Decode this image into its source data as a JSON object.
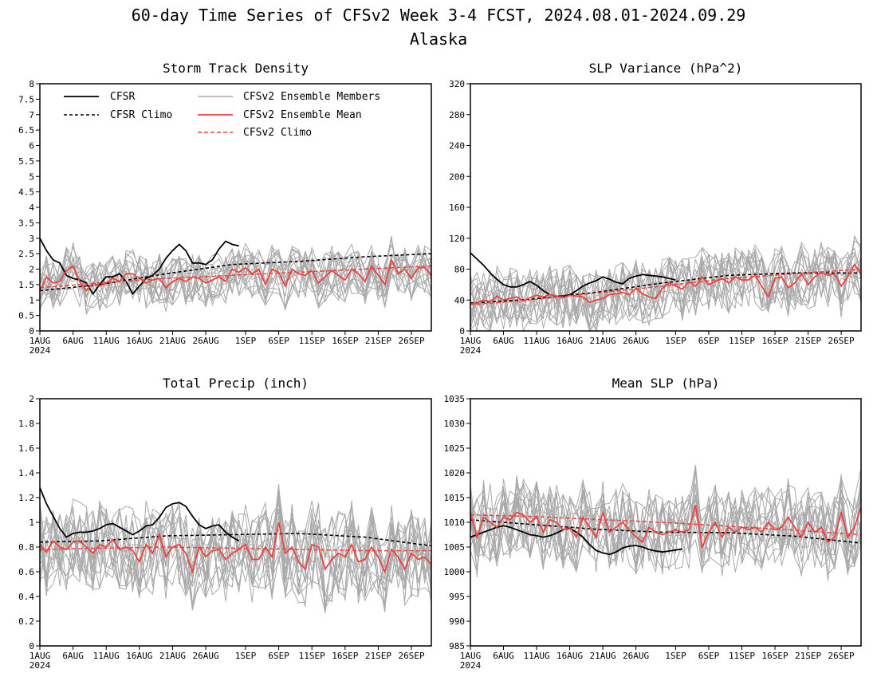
{
  "page": {
    "title": "60-day Time Series of CFSv2 Week 3-4 FCST, 2024.08.01-2024.09.29",
    "subtitle": "Alaska"
  },
  "colors": {
    "cfsr": "#000000",
    "members": "#a9a9a9",
    "ensemble_mean": "#f04040",
    "cfsv2_climo": "#f04040"
  },
  "legend": {
    "cfsr": "CFSR",
    "cfsr_climo": "CFSR Climo",
    "members": "CFSv2 Ensemble Members",
    "ens_mean": "CFSv2 Ensemble Mean",
    "cfsv2_climo": "CFSv2 Climo"
  },
  "x_axis": {
    "tick_days": [
      1,
      6,
      11,
      16,
      21,
      26,
      32,
      37,
      42,
      47,
      52,
      57
    ],
    "tick_labels": [
      "1AUG",
      "6AUG",
      "11AUG",
      "16AUG",
      "21AUG",
      "26AUG",
      "1SEP",
      "6SEP",
      "11SEP",
      "16SEP",
      "21SEP",
      "26SEP"
    ],
    "year_label": "2024",
    "xlim": [
      1,
      60
    ]
  },
  "chart_data": [
    {
      "type": "line",
      "title": "Storm Track Density",
      "ylim": [
        0,
        8
      ],
      "yticks": [
        0,
        0.5,
        1,
        1.5,
        2,
        2.5,
        3,
        3.5,
        4,
        4.5,
        5,
        5.5,
        6,
        6.5,
        7,
        7.5,
        8
      ],
      "ytick_labels": [
        "0",
        "0.5",
        "1",
        "1.5",
        "2",
        "2.5",
        "3",
        "3.5",
        "4",
        "4.5",
        "5",
        "5.5",
        "6",
        "6.5",
        "7",
        "7.5",
        "8"
      ],
      "member_band": [
        1.0,
        2.8
      ],
      "series": [
        {
          "name": "CFSR",
          "style": "solid-black",
          "x": [
            1,
            2,
            3,
            4,
            5,
            6,
            7,
            8,
            9,
            10,
            11,
            12,
            13,
            14,
            15,
            16,
            17,
            18,
            19,
            20,
            21,
            22,
            23,
            24,
            25,
            26,
            27,
            28,
            29,
            30,
            31
          ],
          "values": [
            3.0,
            2.6,
            2.3,
            2.2,
            1.8,
            1.7,
            1.65,
            1.55,
            1.2,
            1.5,
            1.75,
            1.75,
            1.85,
            1.6,
            1.2,
            1.45,
            1.7,
            1.8,
            2.0,
            2.35,
            2.6,
            2.8,
            2.6,
            2.2,
            2.2,
            2.15,
            2.3,
            2.65,
            2.9,
            2.8,
            2.75
          ]
        },
        {
          "name": "CFSR Climo",
          "style": "dash-black",
          "x": [
            1,
            10,
            20,
            30,
            40,
            50,
            60
          ],
          "values": [
            1.3,
            1.5,
            1.85,
            2.15,
            2.25,
            2.4,
            2.5
          ]
        },
        {
          "name": "CFSv2 Ensemble Mean",
          "style": "solid-red",
          "x": [
            1,
            2,
            3,
            4,
            5,
            6,
            7,
            8,
            9,
            10,
            11,
            12,
            13,
            14,
            15,
            16,
            17,
            18,
            19,
            20,
            21,
            22,
            23,
            24,
            25,
            26,
            27,
            28,
            29,
            30,
            31,
            32,
            33,
            34,
            35,
            36,
            37,
            38,
            39,
            40,
            41,
            42,
            43,
            44,
            45,
            46,
            47,
            48,
            49,
            50,
            51,
            52,
            53,
            54,
            55,
            56,
            57,
            58,
            59,
            60
          ],
          "values": [
            1.3,
            1.75,
            1.55,
            1.6,
            1.95,
            2.1,
            1.6,
            1.3,
            1.55,
            1.45,
            1.55,
            1.7,
            1.6,
            1.85,
            1.85,
            1.7,
            1.55,
            1.65,
            1.7,
            1.4,
            1.6,
            1.7,
            1.6,
            1.75,
            1.7,
            1.55,
            1.65,
            1.75,
            1.6,
            2.0,
            1.9,
            2.05,
            1.85,
            2.0,
            1.5,
            2.0,
            1.9,
            1.45,
            2.0,
            1.85,
            1.8,
            1.95,
            1.55,
            1.75,
            1.95,
            1.8,
            1.65,
            2.0,
            1.85,
            1.6,
            2.1,
            1.8,
            1.5,
            2.3,
            1.85,
            2.0,
            1.7,
            2.05,
            2.05,
            1.8
          ]
        },
        {
          "name": "CFSv2 Climo",
          "style": "dash-red",
          "x": [
            1,
            10,
            20,
            30,
            40,
            50,
            60
          ],
          "values": [
            1.4,
            1.55,
            1.7,
            1.8,
            1.9,
            2.0,
            2.1
          ]
        }
      ]
    },
    {
      "type": "line",
      "title": "SLP Variance (hPa^2)",
      "ylim": [
        0,
        320
      ],
      "yticks": [
        0,
        40,
        80,
        120,
        160,
        200,
        240,
        280,
        320
      ],
      "ytick_labels": [
        "0",
        "40",
        "80",
        "120",
        "160",
        "200",
        "240",
        "280",
        "320"
      ],
      "member_band": [
        20,
        110
      ],
      "series": [
        {
          "name": "CFSR",
          "style": "solid-black",
          "x": [
            1,
            2,
            3,
            4,
            5,
            6,
            7,
            8,
            9,
            10,
            11,
            12,
            13,
            14,
            15,
            16,
            17,
            18,
            19,
            20,
            21,
            22,
            23,
            24,
            25,
            26,
            27,
            28,
            29,
            30,
            31,
            32
          ],
          "values": [
            101,
            93,
            85,
            75,
            67,
            60,
            57,
            57,
            60,
            64,
            59,
            52,
            47,
            45,
            45,
            47,
            52,
            58,
            62,
            65,
            70,
            67,
            63,
            61,
            68,
            71,
            73,
            72,
            71,
            70,
            68,
            66
          ]
        },
        {
          "name": "CFSR Climo",
          "style": "dash-black",
          "x": [
            1,
            10,
            20,
            30,
            40,
            50,
            60
          ],
          "values": [
            36,
            41,
            50,
            62,
            72,
            75,
            75
          ]
        },
        {
          "name": "CFSv2 Ensemble Mean",
          "style": "solid-red",
          "x": [
            1,
            2,
            3,
            4,
            5,
            6,
            7,
            8,
            9,
            10,
            11,
            12,
            13,
            14,
            15,
            16,
            17,
            18,
            19,
            20,
            21,
            22,
            23,
            24,
            25,
            26,
            27,
            28,
            29,
            30,
            31,
            32,
            33,
            34,
            35,
            36,
            37,
            38,
            39,
            40,
            41,
            42,
            43,
            44,
            45,
            46,
            47,
            48,
            49,
            50,
            51,
            52,
            53,
            54,
            55,
            56,
            57,
            58,
            59,
            60
          ],
          "values": [
            35,
            36,
            40,
            38,
            45,
            40,
            42,
            44,
            39,
            43,
            46,
            44,
            47,
            45,
            43,
            46,
            45,
            44,
            37,
            40,
            42,
            47,
            48,
            50,
            47,
            55,
            48,
            44,
            42,
            55,
            62,
            58,
            54,
            64,
            58,
            70,
            60,
            64,
            68,
            62,
            70,
            66,
            66,
            72,
            58,
            44,
            68,
            70,
            56,
            62,
            74,
            60,
            70,
            76,
            72,
            74,
            58,
            70,
            86,
            74
          ]
        },
        {
          "name": "CFSv2 Climo",
          "style": "dash-red",
          "x": [
            1,
            10,
            20,
            30,
            40,
            50,
            60
          ],
          "values": [
            34,
            40,
            49,
            58,
            68,
            74,
            80
          ]
        }
      ]
    },
    {
      "type": "line",
      "title": "Total Precip (inch)",
      "ylim": [
        0,
        2
      ],
      "yticks": [
        0,
        0.2,
        0.4,
        0.6,
        0.8,
        1,
        1.2,
        1.4,
        1.6,
        1.8,
        2
      ],
      "ytick_labels": [
        "0",
        "0.2",
        "0.4",
        "0.6",
        "0.8",
        "1",
        "1.2",
        "1.4",
        "1.6",
        "1.8",
        "2"
      ],
      "member_band": [
        0.35,
        1.15
      ],
      "series": [
        {
          "name": "CFSR",
          "style": "solid-black",
          "x": [
            1,
            2,
            3,
            4,
            5,
            6,
            7,
            8,
            9,
            10,
            11,
            12,
            13,
            14,
            15,
            16,
            17,
            18,
            19,
            20,
            21,
            22,
            23,
            24,
            25,
            26,
            27,
            28,
            29,
            30,
            31
          ],
          "values": [
            1.28,
            1.15,
            1.05,
            0.95,
            0.88,
            0.91,
            0.92,
            0.92,
            0.93,
            0.95,
            0.98,
            0.99,
            0.96,
            0.93,
            0.9,
            0.93,
            0.97,
            0.98,
            1.04,
            1.12,
            1.15,
            1.16,
            1.13,
            1.05,
            0.98,
            0.95,
            0.97,
            0.98,
            0.92,
            0.88,
            0.85
          ]
        },
        {
          "name": "CFSR Climo",
          "style": "dash-black",
          "x": [
            1,
            10,
            20,
            30,
            40,
            50,
            60
          ],
          "values": [
            0.84,
            0.85,
            0.89,
            0.9,
            0.91,
            0.88,
            0.81
          ]
        },
        {
          "name": "CFSv2 Ensemble Mean",
          "style": "solid-red",
          "x": [
            1,
            2,
            3,
            4,
            5,
            6,
            7,
            8,
            9,
            10,
            11,
            12,
            13,
            14,
            15,
            16,
            17,
            18,
            19,
            20,
            21,
            22,
            23,
            24,
            25,
            26,
            27,
            28,
            29,
            30,
            31,
            32,
            33,
            34,
            35,
            36,
            37,
            38,
            39,
            40,
            41,
            42,
            43,
            44,
            45,
            46,
            47,
            48,
            49,
            50,
            51,
            52,
            53,
            54,
            55,
            56,
            57,
            58,
            59,
            60
          ],
          "values": [
            0.82,
            0.76,
            0.85,
            0.8,
            0.78,
            0.84,
            0.85,
            0.8,
            0.75,
            0.82,
            0.8,
            0.86,
            0.78,
            0.8,
            0.77,
            0.68,
            0.82,
            0.75,
            0.9,
            0.72,
            0.8,
            0.82,
            0.75,
            0.6,
            0.8,
            0.72,
            0.77,
            0.78,
            0.7,
            0.75,
            0.78,
            0.82,
            0.7,
            0.7,
            0.8,
            0.72,
            1.0,
            0.75,
            0.8,
            0.68,
            0.62,
            0.82,
            0.8,
            0.62,
            0.7,
            0.75,
            0.72,
            0.82,
            0.68,
            0.7,
            0.8,
            0.72,
            0.6,
            0.78,
            0.72,
            0.62,
            0.75,
            0.7,
            0.72,
            0.66
          ]
        },
        {
          "name": "CFSv2 Climo",
          "style": "dash-red",
          "x": [
            1,
            10,
            20,
            30,
            40,
            50,
            60
          ],
          "values": [
            0.78,
            0.79,
            0.8,
            0.79,
            0.78,
            0.77,
            0.77
          ]
        }
      ]
    },
    {
      "type": "line",
      "title": "Mean SLP (hPa)",
      "ylim": [
        985,
        1035
      ],
      "yticks": [
        985,
        990,
        995,
        1000,
        1005,
        1010,
        1015,
        1020,
        1025,
        1030,
        1035
      ],
      "ytick_labels": [
        "985",
        "990",
        "995",
        "1000",
        "1005",
        "1010",
        "1015",
        "1020",
        "1025",
        "1030",
        "1035"
      ],
      "member_band": [
        1000,
        1018
      ],
      "series": [
        {
          "name": "CFSR",
          "style": "solid-black",
          "x": [
            1,
            2,
            3,
            4,
            5,
            6,
            7,
            8,
            9,
            10,
            11,
            12,
            13,
            14,
            15,
            16,
            17,
            18,
            19,
            20,
            21,
            22,
            23,
            24,
            25,
            26,
            27,
            28,
            29,
            30,
            31,
            32,
            33
          ],
          "values": [
            1007,
            1007.5,
            1008,
            1008.5,
            1009,
            1009.3,
            1009,
            1008.5,
            1008,
            1007.5,
            1007.3,
            1007,
            1007.3,
            1007.8,
            1008.5,
            1008.8,
            1008,
            1007,
            1005.5,
            1004.3,
            1003.8,
            1003.5,
            1004,
            1004.8,
            1005.2,
            1005.3,
            1005,
            1004.5,
            1004.2,
            1004,
            1004.2,
            1004.4,
            1004.6
          ]
        },
        {
          "name": "CFSR Climo",
          "style": "dash-black",
          "x": [
            1,
            10,
            20,
            30,
            40,
            50,
            60
          ],
          "values": [
            1010.5,
            1009.6,
            1008.6,
            1008,
            1007.9,
            1007.2,
            1005.8
          ]
        },
        {
          "name": "CFSv2 Ensemble Mean",
          "style": "solid-red",
          "x": [
            1,
            2,
            3,
            4,
            5,
            6,
            7,
            8,
            9,
            10,
            11,
            12,
            13,
            14,
            15,
            16,
            17,
            18,
            19,
            20,
            21,
            22,
            23,
            24,
            25,
            26,
            27,
            28,
            29,
            30,
            31,
            32,
            33,
            34,
            35,
            36,
            37,
            38,
            39,
            40,
            41,
            42,
            43,
            44,
            45,
            46,
            47,
            48,
            49,
            50,
            51,
            52,
            53,
            54,
            55,
            56,
            57,
            58,
            59,
            60
          ],
          "values": [
            1012,
            1007,
            1011,
            1010,
            1009,
            1011,
            1010.5,
            1012,
            1011.5,
            1010,
            1011,
            1008,
            1010.5,
            1010,
            1008.5,
            1009,
            1007,
            1011,
            1009,
            1007,
            1012,
            1008,
            1009,
            1010,
            1008.5,
            1007,
            1006,
            1009,
            1008,
            1007.5,
            1008,
            1008.5,
            1008,
            1008.5,
            1013.5,
            1005,
            1008,
            1010,
            1007,
            1009,
            1008,
            1009,
            1008.5,
            1009,
            1008,
            1010,
            1008.5,
            1009,
            1011,
            1009,
            1007,
            1010,
            1008,
            1009,
            1006,
            1007,
            1012,
            1007,
            1009,
            1013
          ]
        },
        {
          "name": "CFSv2 Climo",
          "style": "dash-red",
          "x": [
            1,
            10,
            20,
            30,
            40,
            50,
            60
          ],
          "values": [
            1011.5,
            1011.2,
            1010.6,
            1010,
            1009.2,
            1008.4,
            1007.5
          ]
        }
      ]
    }
  ]
}
